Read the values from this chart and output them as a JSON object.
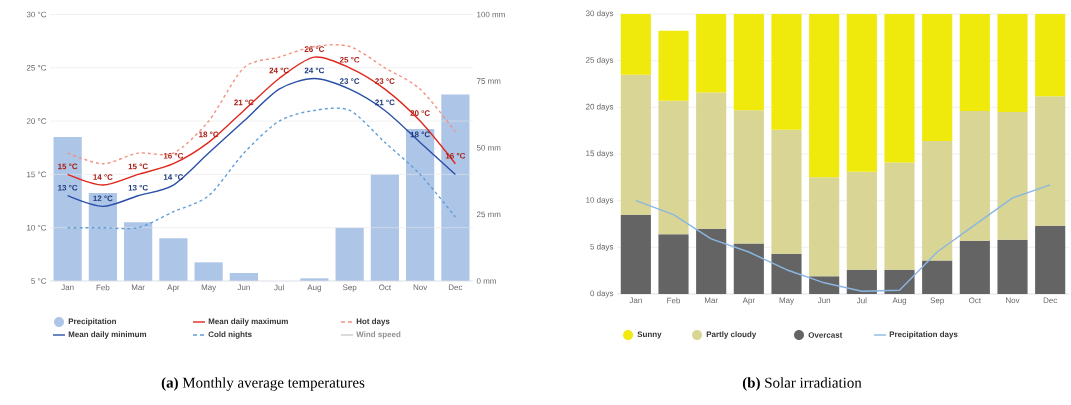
{
  "chart_data": [
    {
      "type": "line",
      "title": "**(a)** Monthly average temperatures",
      "categories": [
        "Jan",
        "Feb",
        "Mar",
        "Apr",
        "May",
        "Jun",
        "Jul",
        "Aug",
        "Sep",
        "Oct",
        "Nov",
        "Dec"
      ],
      "series": [
        {
          "name": "Precipitation",
          "type": "bar",
          "axis": "y2",
          "color": "#adc5e7",
          "values": [
            54,
            33,
            22,
            16,
            7,
            3,
            0,
            1,
            20,
            40,
            57,
            70
          ]
        },
        {
          "name": "Mean daily maximum",
          "color": "#e1261c",
          "values": [
            15,
            14,
            15,
            16,
            18,
            21,
            24,
            26,
            25,
            23,
            20,
            16
          ],
          "value_labels": [
            "15 °C",
            "14 °C",
            "15 °C",
            "16 °C",
            "18 °C",
            "21 °C",
            "24 °C",
            "26 °C",
            "25 °C",
            "23 °C",
            "20 °C",
            "16 °C"
          ]
        },
        {
          "name": "Hot days",
          "color": "#f4917f",
          "line_style": "dashed",
          "values": [
            17,
            16,
            17,
            17,
            20,
            25,
            26,
            27,
            27,
            25,
            23,
            19
          ]
        },
        {
          "name": "Mean daily minimum",
          "color": "#2a4fa8",
          "values": [
            13,
            12,
            13,
            14,
            17,
            20,
            23,
            24,
            23,
            21,
            18,
            15
          ],
          "value_labels": [
            "13 °C",
            "12 °C",
            "13 °C",
            "14 °C",
            null,
            null,
            null,
            "24 °C",
            "23 °C",
            "21 °C",
            "18 °C",
            null
          ]
        },
        {
          "name": "Cold nights",
          "color": "#5e9fd9",
          "line_style": "dashed",
          "values": [
            10,
            10,
            10,
            11.5,
            13,
            17,
            20,
            21,
            21,
            18,
            15,
            11
          ]
        },
        {
          "name": "Wind speed",
          "color": "#cccccc",
          "values": [
            null,
            null,
            null,
            null,
            null,
            null,
            null,
            null,
            null,
            null,
            null,
            null
          ]
        }
      ],
      "ylim": [
        5,
        30
      ],
      "yticks": [
        {
          "value": 5,
          "label": "5 °C"
        },
        {
          "value": 10,
          "label": "10 °C"
        },
        {
          "value": 15,
          "label": "15 °C"
        },
        {
          "value": 20,
          "label": "20 °C"
        },
        {
          "value": 25,
          "label": "25 °C"
        },
        {
          "value": 30,
          "label": "30 °C"
        }
      ],
      "y2lim": [
        0,
        100
      ],
      "y2ticks": [
        {
          "value": 0,
          "label": "0 mm"
        },
        {
          "value": 25,
          "label": "25 mm"
        },
        {
          "value": 50,
          "label": "50 mm"
        },
        {
          "value": 75,
          "label": "75 mm"
        },
        {
          "value": 100,
          "label": "100 mm"
        }
      ],
      "grid": "y",
      "legend": "bottom"
    },
    {
      "type": "bar",
      "title": "**(b)** Solar irradiation",
      "stacked": true,
      "categories": [
        "Jan",
        "Feb",
        "Mar",
        "Apr",
        "May",
        "Jun",
        "Jul",
        "Aug",
        "Sep",
        "Oct",
        "Nov",
        "Dec"
      ],
      "series": [
        {
          "name": "Overcast",
          "color": "#646464",
          "values": [
            8.5,
            6.4,
            7.0,
            5.4,
            4.3,
            1.9,
            2.6,
            2.6,
            3.6,
            5.7,
            5.8,
            7.3
          ]
        },
        {
          "name": "Partly cloudy",
          "color": "#d8d595",
          "values": [
            15.0,
            14.3,
            14.6,
            14.3,
            13.3,
            10.6,
            10.5,
            11.5,
            12.8,
            13.9,
            13.7,
            13.9
          ]
        },
        {
          "name": "Sunny",
          "color": "#f0ea0c",
          "values": [
            6.5,
            7.5,
            8.4,
            10.3,
            12.4,
            17.5,
            16.9,
            15.9,
            13.6,
            10.4,
            10.5,
            8.8
          ]
        },
        {
          "name": "Precipitation days",
          "type": "line",
          "color": "#8cb6e2",
          "values": [
            10.0,
            8.5,
            5.9,
            4.5,
            2.6,
            1.2,
            0.3,
            0.4,
            4.5,
            7.4,
            10.3,
            11.7
          ]
        }
      ],
      "ylim": [
        0,
        30
      ],
      "yticks": [
        {
          "value": 0,
          "label": "0 days"
        },
        {
          "value": 5,
          "label": "5 days"
        },
        {
          "value": 10,
          "label": "10 days"
        },
        {
          "value": 15,
          "label": "15 days"
        },
        {
          "value": 20,
          "label": "20 days"
        },
        {
          "value": 25,
          "label": "25 days"
        },
        {
          "value": 30,
          "label": "30 days"
        }
      ],
      "grid": "y",
      "legend": "bottom"
    }
  ]
}
